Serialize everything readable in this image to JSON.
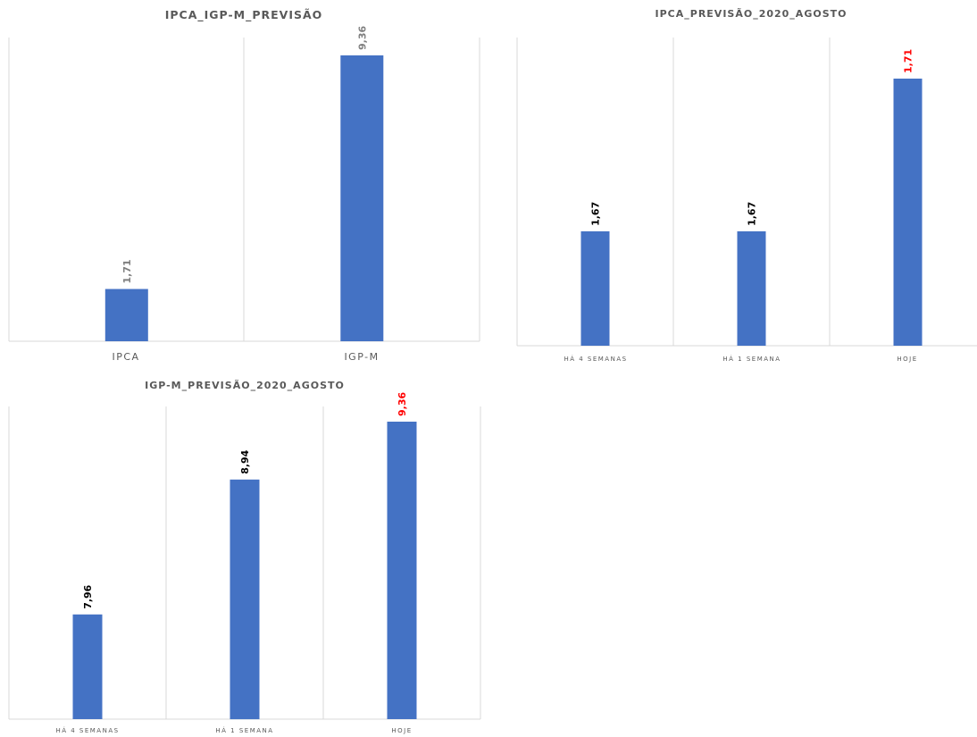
{
  "chart_data": [
    {
      "type": "bar",
      "title": "IPCA_IGP-M_PREVISÃO",
      "categories": [
        "IPCA",
        "IGP-M"
      ],
      "values": [
        1.71,
        9.36
      ],
      "value_labels": [
        "1,71",
        "9,36"
      ],
      "label_colors": [
        "#7f7f7f",
        "#7f7f7f"
      ],
      "bar_color": "#4472c4",
      "ylim": [
        0,
        10
      ],
      "grid": false,
      "legend": "none"
    },
    {
      "type": "bar",
      "title": "IPCA_PREVISÃO_2020_AGOSTO",
      "categories": [
        "HÁ 4 SEMANAS",
        "HÁ 1 SEMANA",
        "HOJE"
      ],
      "values": [
        1.67,
        1.67,
        1.71
      ],
      "value_labels": [
        "1,67",
        "1,67",
        "1,71"
      ],
      "label_colors": [
        "#000000",
        "#000000",
        "#ff0000"
      ],
      "bar_color": "#4472c4",
      "ylim": [
        1.64,
        1.72
      ],
      "grid": false,
      "legend": "none"
    },
    {
      "type": "bar",
      "title": "IGP-M_PREVISÃO_2020_AGOSTO",
      "categories": [
        "HÁ 4 SEMANAS",
        "HÁ 1 SEMANA",
        "HOJE"
      ],
      "values": [
        7.96,
        8.94,
        9.36
      ],
      "value_labels": [
        "7,96",
        "8,94",
        "9,36"
      ],
      "label_colors": [
        "#000000",
        "#000000",
        "#ff0000"
      ],
      "bar_color": "#4472c4",
      "ylim": [
        7.2,
        9.5
      ],
      "grid": false,
      "legend": "none"
    }
  ]
}
